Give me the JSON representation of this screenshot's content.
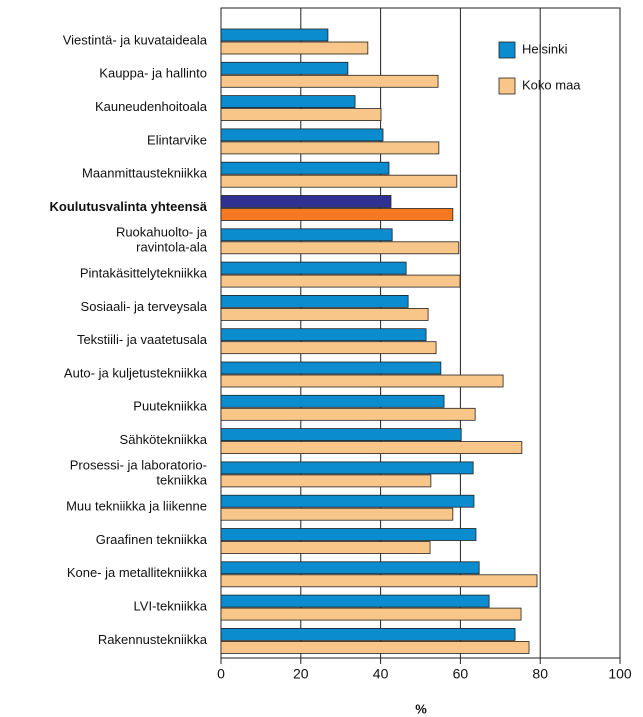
{
  "chart_data": {
    "type": "bar",
    "orientation": "horizontal",
    "x_label": "%",
    "categories": [
      "Viestintä- ja kuvataideala",
      "Kauppa- ja hallinto",
      "Kauneudenhoitoala",
      "Elintarvike",
      "Maanmittaustekniikka",
      "Koulutusvalinta yhteensä",
      "Ruokahuolto- ja\nravintola-ala",
      "Pintakäsittelytekniikka",
      "Sosiaali- ja terveysala",
      "Tekstiili- ja vaatetusala",
      "Auto- ja kuljetustekniikka",
      "Puutekniikka",
      "Sähkötekniikka",
      "Prosessi- ja laboratorio-\ntekniikka",
      "Muu tekniikka ja liikenne",
      "Graafinen tekniikka",
      "Kone- ja metallitekniikka",
      "LVI-tekniikka",
      "Rakennustekniikka"
    ],
    "series": [
      {
        "name": "Helsinki",
        "color": "#0a8ccf",
        "values": [
          26.8,
          31.8,
          33.6,
          40.6,
          42.1,
          42.6,
          42.9,
          46.4,
          46.9,
          51.4,
          55.1,
          55.9,
          60.2,
          63.2,
          63.4,
          63.9,
          64.7,
          67.2,
          73.7
        ]
      },
      {
        "name": "Koko maa",
        "color": "#f9c68a",
        "values": [
          36.8,
          54.4,
          40.1,
          54.6,
          59.1,
          58.1,
          59.6,
          59.9,
          51.9,
          53.9,
          70.7,
          63.7,
          75.4,
          52.6,
          58.1,
          52.4,
          79.2,
          75.2,
          77.2
        ]
      }
    ],
    "highlight": {
      "category": 5,
      "colors": [
        "#2e3192",
        "#f47920"
      ]
    },
    "xlim": [
      0,
      100
    ],
    "xticks": [
      0,
      20,
      40,
      60,
      80,
      100
    ],
    "grid": true,
    "legend": "upper right"
  }
}
